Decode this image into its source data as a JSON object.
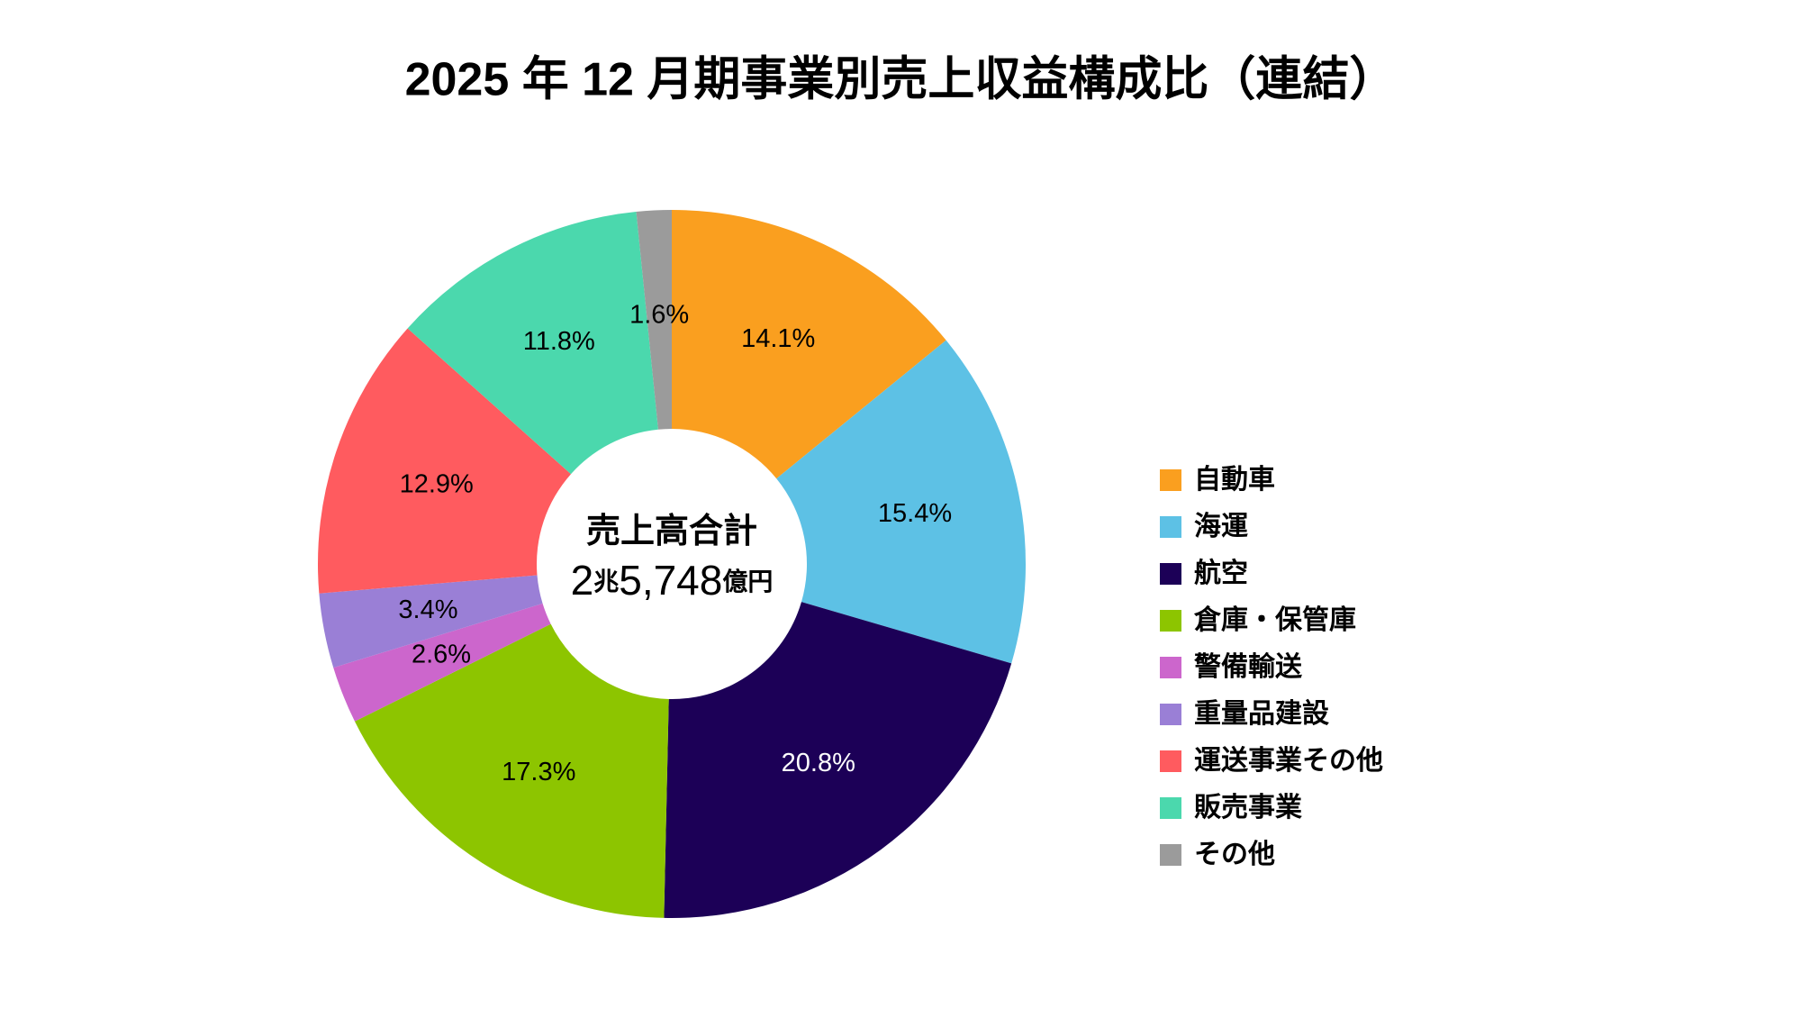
{
  "chart_data": {
    "type": "donut",
    "title": "2025 年 12 月期事業別売上収益構成比（連結）",
    "center_label": "売上高合計",
    "center_value": [
      "2",
      "兆",
      "5,748",
      "億円"
    ],
    "categories": [
      "自動車",
      "海運",
      "航空",
      "倉庫・保管庫",
      "警備輸送",
      "重量品建設",
      "運送事業その他",
      "販売事業",
      "その他"
    ],
    "values": [
      14.1,
      15.4,
      20.8,
      17.3,
      2.6,
      3.4,
      12.9,
      11.8,
      1.6
    ],
    "value_labels": [
      "14.1%",
      "15.4%",
      "20.8%",
      "17.3%",
      "2.6%",
      "3.4%",
      "12.9%",
      "11.8%",
      "1.6%"
    ],
    "colors": [
      "#fa9f1f",
      "#5dc1e5",
      "#1c0057",
      "#8dc500",
      "#cc66cc",
      "#9a7fd6",
      "#ff5b5f",
      "#4bd8ad",
      "#9b9b9b"
    ],
    "legend": "right"
  }
}
